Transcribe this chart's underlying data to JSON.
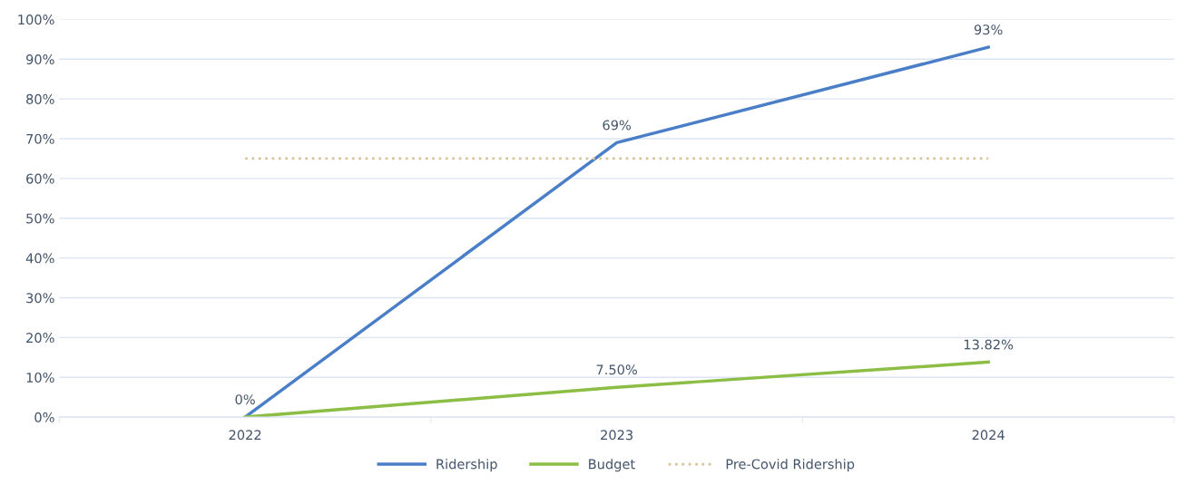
{
  "chart_data": {
    "type": "line",
    "categories": [
      "2022",
      "2023",
      "2024"
    ],
    "series": [
      {
        "name": "Ridership",
        "color": "#4a7fc8",
        "values": [
          0,
          69,
          93
        ],
        "value_labels": [
          "0%",
          "69%",
          "93%"
        ],
        "line_style": "solid"
      },
      {
        "name": "Budget",
        "color": "#8cbd45",
        "values": [
          0,
          7.5,
          13.82
        ],
        "value_labels": [
          null,
          "7.50%",
          "13.82%"
        ],
        "line_style": "solid"
      },
      {
        "name": "Pre-Covid Ridership",
        "color": "#d8c49a",
        "values": [
          65,
          65,
          65
        ],
        "line_style": "dotted"
      }
    ],
    "ylim": [
      0,
      100
    ],
    "yticks": [
      {
        "value": 0,
        "label": "0%"
      },
      {
        "value": 10,
        "label": "10%"
      },
      {
        "value": 20,
        "label": "20%"
      },
      {
        "value": 30,
        "label": "30%"
      },
      {
        "value": 40,
        "label": "40%"
      },
      {
        "value": 50,
        "label": "50%"
      },
      {
        "value": 60,
        "label": "60%"
      },
      {
        "value": 70,
        "label": "70%"
      },
      {
        "value": 80,
        "label": "80%"
      },
      {
        "value": 90,
        "label": "90%"
      },
      {
        "value": 100,
        "label": "100%"
      }
    ],
    "grid": "y",
    "legend": "bottom",
    "marker": "none"
  }
}
